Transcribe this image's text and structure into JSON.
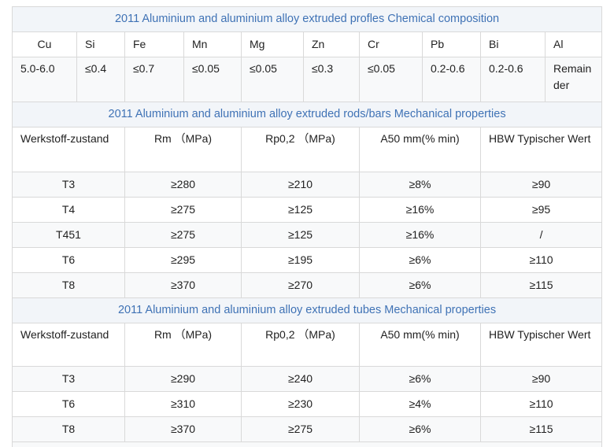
{
  "composition": {
    "title": "2011 Aluminium and aluminium alloy extruded profles Chemical composition",
    "headers": [
      "Cu",
      "Si",
      "Fe",
      "Mn",
      "Mg",
      "Zn",
      "Cr",
      "Pb",
      "Bi",
      "Al"
    ],
    "values": [
      "5.0-6.0",
      "≤0.4",
      "≤0.7",
      "≤0.05",
      "≤0.05",
      "≤0.3",
      "≤0.05",
      "0.2-0.6",
      "0.2-0.6",
      "Remainder"
    ]
  },
  "rods": {
    "title": "2011 Aluminium and aluminium alloy extruded rods/bars Mechanical properties",
    "headers": [
      "Werkstoff-zustand",
      "Rm （MPa)",
      "Rp0,2 （MPa)",
      "A50 mm(% min)",
      "HBW Typischer Wert"
    ],
    "rows": [
      [
        "T3",
        "≥280",
        "≥210",
        "≥8%",
        "≥90"
      ],
      [
        "T4",
        "≥275",
        "≥125",
        "≥16%",
        "≥95"
      ],
      [
        "T451",
        "≥275",
        "≥125",
        "≥16%",
        "/"
      ],
      [
        "T6",
        "≥295",
        "≥195",
        "≥6%",
        "≥110"
      ],
      [
        "T8",
        "≥370",
        "≥270",
        "≥6%",
        "≥115"
      ]
    ]
  },
  "tubes": {
    "title": "2011 Aluminium and aluminium alloy extruded tubes Mechanical properties",
    "headers": [
      "Werkstoff-zustand",
      "Rm （MPa)",
      "Rp0,2 （MPa)",
      "A50 mm(% min)",
      "HBW Typischer Wert"
    ],
    "rows": [
      [
        "T3",
        "≥290",
        "≥240",
        "≥6%",
        "≥90"
      ],
      [
        "T6",
        "≥310",
        "≥230",
        "≥4%",
        "≥110"
      ],
      [
        "T8",
        "≥370",
        "≥275",
        "≥6%",
        "≥115"
      ]
    ]
  }
}
